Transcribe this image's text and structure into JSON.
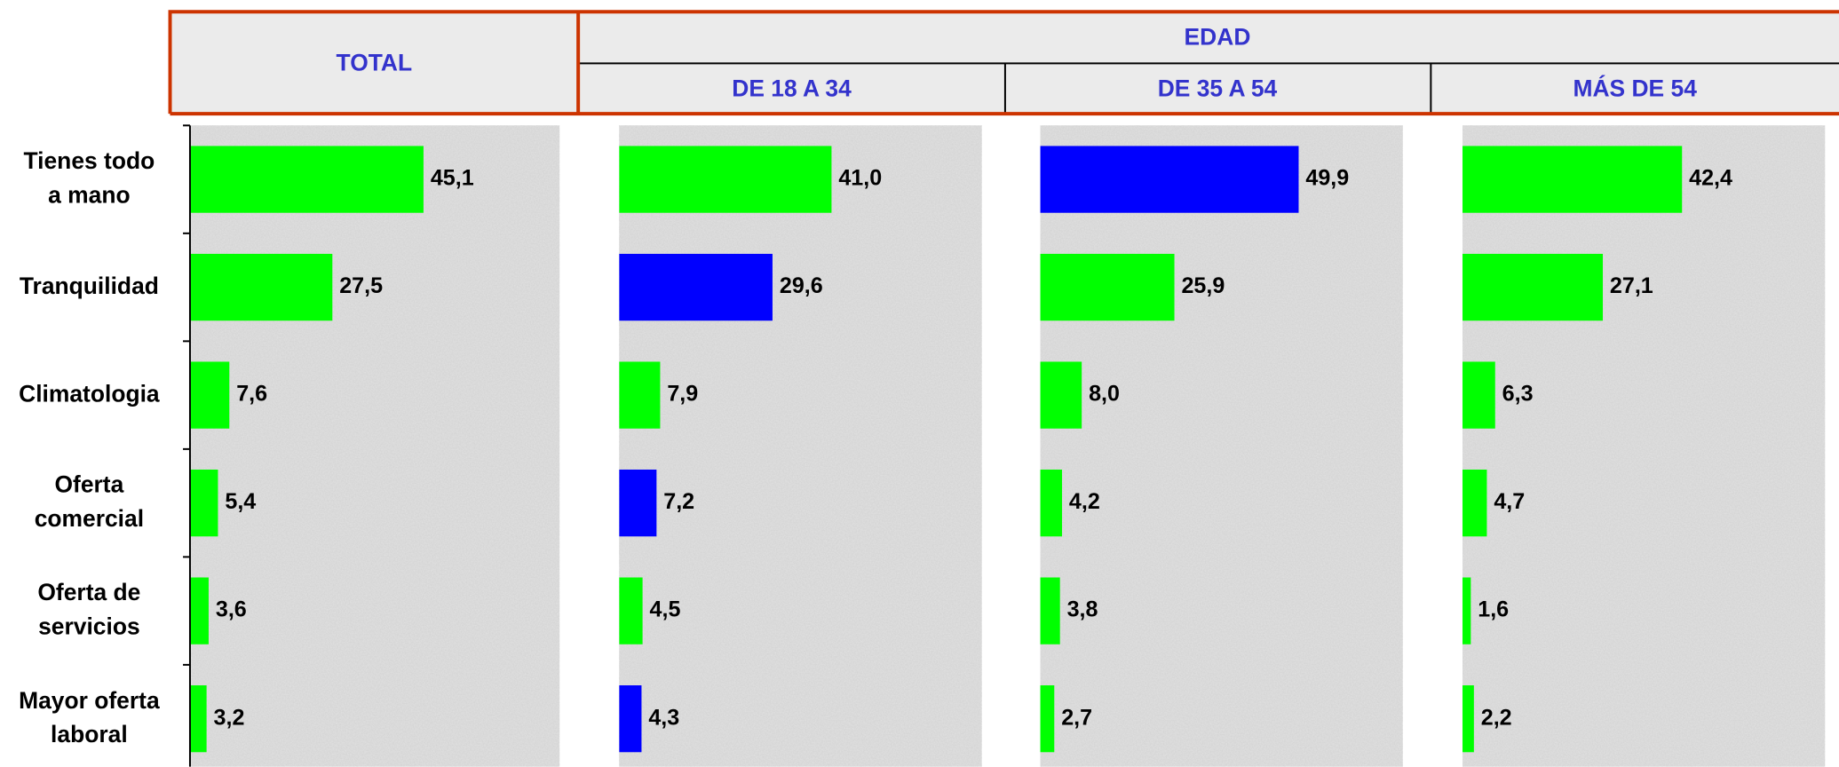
{
  "chart_data": {
    "type": "bar",
    "orientation": "horizontal",
    "group_label": "EDAD",
    "categories": [
      "Tienes todo\na mano",
      "Tranquilidad",
      "Climatologia",
      "Oferta\ncomercial",
      "Oferta de\nservicios",
      "Mayor oferta\nlaboral"
    ],
    "xlim": [
      0,
      70
    ],
    "series": [
      {
        "name": "TOTAL",
        "values": [
          45.1,
          27.5,
          7.6,
          5.4,
          3.6,
          3.2
        ],
        "value_labels": [
          "45,1",
          "27,5",
          "7,6",
          "5,4",
          "3,6",
          "3,2"
        ],
        "colors": [
          "#00ff00",
          "#00ff00",
          "#00ff00",
          "#00ff00",
          "#00ff00",
          "#00ff00"
        ]
      },
      {
        "name": "DE 18 A 34",
        "values": [
          41.0,
          29.6,
          7.9,
          7.2,
          4.5,
          4.3
        ],
        "value_labels": [
          "41,0",
          "29,6",
          "7,9",
          "7,2",
          "4,5",
          "4,3"
        ],
        "colors": [
          "#00ff00",
          "#0000ff",
          "#00ff00",
          "#0000ff",
          "#00ff00",
          "#0000ff"
        ]
      },
      {
        "name": "DE 35 A 54",
        "values": [
          49.9,
          25.9,
          8.0,
          4.2,
          3.8,
          2.7
        ],
        "value_labels": [
          "49,9",
          "25,9",
          "8,0",
          "4,2",
          "3,8",
          "2,7"
        ],
        "colors": [
          "#0000ff",
          "#00ff00",
          "#00ff00",
          "#00ff00",
          "#00ff00",
          "#00ff00"
        ]
      },
      {
        "name": "MÁS DE 54",
        "values": [
          42.4,
          27.1,
          6.3,
          4.7,
          1.6,
          2.2
        ],
        "value_labels": [
          "42,4",
          "27,1",
          "6,3",
          "4,7",
          "1,6",
          "2,2"
        ],
        "colors": [
          "#00ff00",
          "#00ff00",
          "#00ff00",
          "#00ff00",
          "#00ff00",
          "#00ff00"
        ]
      }
    ]
  }
}
